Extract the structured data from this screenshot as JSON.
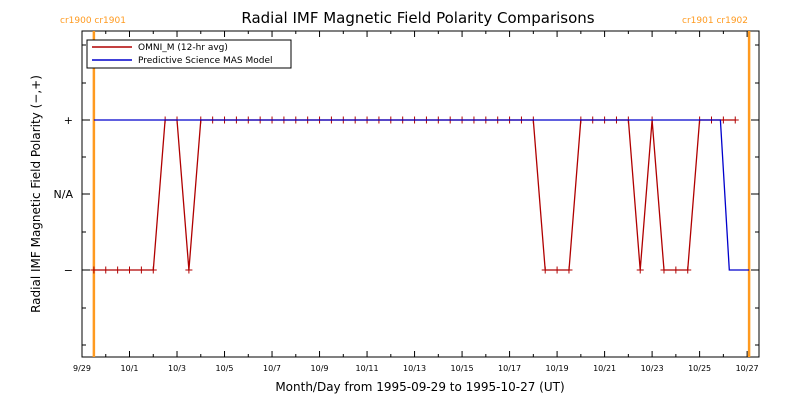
{
  "chart_data": {
    "type": "line",
    "title": "Radial IMF Magnetic Field Polarity Comparisons",
    "xlabel": "Month/Day from 1995-09-29 to 1995-10-27 (UT)",
    "ylabel": "Radial IMF Magnetic Field Polarity (−,+)",
    "x_ticks": [
      "9/29",
      "10/1",
      "10/3",
      "10/5",
      "10/7",
      "10/9",
      "10/11",
      "10/13",
      "10/15",
      "10/17",
      "10/19",
      "10/21",
      "10/23",
      "10/25",
      "10/27"
    ],
    "y_ticks": [
      "+",
      "N/A",
      "−"
    ],
    "cr_labels": {
      "left": "cr1900 cr1901",
      "right": "cr1901 cr1902"
    },
    "carrington_boundaries": [
      "1995-09-29T12:00",
      "1995-10-27T02:00"
    ],
    "legend": "top-left",
    "series": [
      {
        "name": "OMNI_M (12-hr avg)",
        "color": "#b00000",
        "markers": "+",
        "points": [
          [
            "1995-09-29T12:00",
            -1
          ],
          [
            "1995-09-30T00:00",
            -1
          ],
          [
            "1995-09-30T12:00",
            -1
          ],
          [
            "1995-10-01T00:00",
            -1
          ],
          [
            "1995-10-01T12:00",
            -1
          ],
          [
            "1995-10-02T00:00",
            -1
          ],
          [
            "1995-10-02T12:00",
            1
          ],
          [
            "1995-10-03T00:00",
            1
          ],
          [
            "1995-10-03T12:00",
            -1
          ],
          [
            "1995-10-04T00:00",
            1
          ],
          [
            "1995-10-04T12:00",
            1
          ],
          [
            "1995-10-05T00:00",
            1
          ],
          [
            "1995-10-05T12:00",
            1
          ],
          [
            "1995-10-06T00:00",
            1
          ],
          [
            "1995-10-06T12:00",
            1
          ],
          [
            "1995-10-07T00:00",
            1
          ],
          [
            "1995-10-07T12:00",
            1
          ],
          [
            "1995-10-08T00:00",
            1
          ],
          [
            "1995-10-08T12:00",
            1
          ],
          [
            "1995-10-09T00:00",
            1
          ],
          [
            "1995-10-09T12:00",
            1
          ],
          [
            "1995-10-10T00:00",
            1
          ],
          [
            "1995-10-10T12:00",
            1
          ],
          [
            "1995-10-11T00:00",
            1
          ],
          [
            "1995-10-11T12:00",
            1
          ],
          [
            "1995-10-12T00:00",
            1
          ],
          [
            "1995-10-12T12:00",
            1
          ],
          [
            "1995-10-13T00:00",
            1
          ],
          [
            "1995-10-13T12:00",
            1
          ],
          [
            "1995-10-14T00:00",
            1
          ],
          [
            "1995-10-14T12:00",
            1
          ],
          [
            "1995-10-15T00:00",
            1
          ],
          [
            "1995-10-15T12:00",
            1
          ],
          [
            "1995-10-16T00:00",
            1
          ],
          [
            "1995-10-16T12:00",
            1
          ],
          [
            "1995-10-17T00:00",
            1
          ],
          [
            "1995-10-17T12:00",
            1
          ],
          [
            "1995-10-18T00:00",
            1
          ],
          [
            "1995-10-18T12:00",
            -1
          ],
          [
            "1995-10-19T00:00",
            -1
          ],
          [
            "1995-10-19T12:00",
            -1
          ],
          [
            "1995-10-20T00:00",
            1
          ],
          [
            "1995-10-20T12:00",
            1
          ],
          [
            "1995-10-21T00:00",
            1
          ],
          [
            "1995-10-21T12:00",
            1
          ],
          [
            "1995-10-22T00:00",
            1
          ],
          [
            "1995-10-22T12:00",
            -1
          ],
          [
            "1995-10-23T00:00",
            1
          ],
          [
            "1995-10-23T12:00",
            -1
          ],
          [
            "1995-10-24T00:00",
            -1
          ],
          [
            "1995-10-24T12:00",
            -1
          ],
          [
            "1995-10-25T00:00",
            1
          ],
          [
            "1995-10-25T12:00",
            1
          ],
          [
            "1995-10-26T00:00",
            1
          ],
          [
            "1995-10-26T12:00",
            1
          ]
        ]
      },
      {
        "name": "Predictive Science MAS Model",
        "color": "#0000cc",
        "points": [
          [
            "1995-09-29T12:00",
            1
          ],
          [
            "1995-10-25T21:00",
            1
          ],
          [
            "1995-10-26T06:00",
            -1
          ],
          [
            "1995-10-27T02:00",
            -1
          ]
        ]
      }
    ]
  }
}
